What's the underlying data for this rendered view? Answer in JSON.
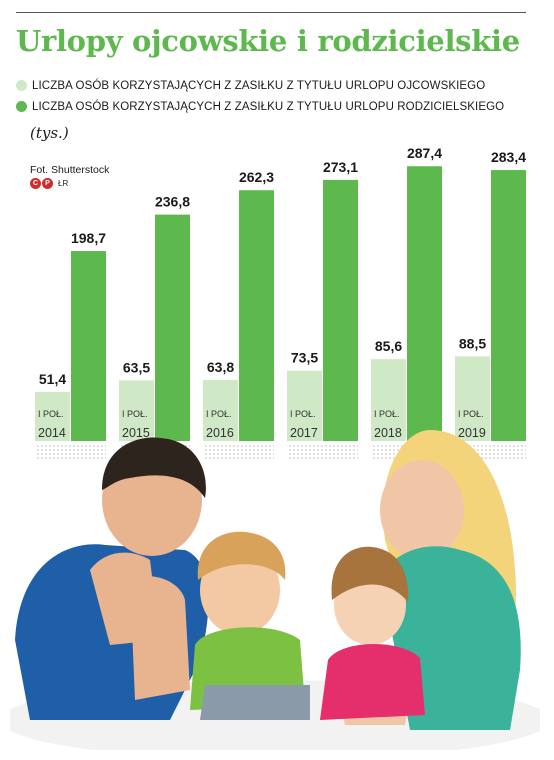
{
  "header": {
    "title": "Urlopy ojcowskie i rodzicielskie",
    "unit": "(tys.)",
    "photo_credit": "Fot. Shutterstock",
    "copyright_symbols": [
      "C",
      "P"
    ],
    "copyright_extra": "ŁR"
  },
  "legend": [
    {
      "label": "LICZBA OSÓB KORZYSTAJĄCYCH Z ZASIŁKU Z TYTUŁU URLOPU OJCOWSKIEGO",
      "color": "#cfe8c5"
    },
    {
      "label": "LICZBA OSÓB KORZYSTAJĄCYCH Z ZASIŁKU Z TYTUŁU URLOPU RODZICIELSKIEGO",
      "color": "#5db84d"
    }
  ],
  "chart_data": {
    "type": "bar",
    "title": "Urlopy ojcowskie i rodzicielskie",
    "ylabel": "(tys.)",
    "ylim": [
      0,
      300
    ],
    "categories": [
      "I POŁ. 2014",
      "I POŁ. 2015",
      "I POŁ. 2016",
      "I POŁ. 2017",
      "I POŁ. 2018",
      "I POŁ. 2019"
    ],
    "category_top": [
      "I POŁ.",
      "I POŁ.",
      "I POŁ.",
      "I POŁ.",
      "I POŁ.",
      "I POŁ."
    ],
    "category_year": [
      "2014",
      "2015",
      "2016",
      "2017",
      "2018",
      "2019"
    ],
    "series": [
      {
        "name": "LICZBA OSÓB KORZYSTAJĄCYCH Z ZASIŁKU Z TYTUŁU URLOPU OJCOWSKIEGO",
        "color": "#cfe8c5",
        "values": [
          51.4,
          63.5,
          63.8,
          73.5,
          85.6,
          88.5
        ],
        "labels": [
          "51,4",
          "63,5",
          "63,8",
          "73,5",
          "85,6",
          "88,5"
        ]
      },
      {
        "name": "LICZBA OSÓB KORZYSTAJĄCYCH Z ZASIŁKU Z TYTUŁU URLOPU RODZICIELSKIEGO",
        "color": "#5db84d",
        "values": [
          198.7,
          236.8,
          262.3,
          273.1,
          287.4,
          283.4
        ],
        "labels": [
          "198,7",
          "236,8",
          "262,3",
          "273,1",
          "287,4",
          "283,4"
        ]
      }
    ],
    "grid": false,
    "legend_position": "top"
  }
}
